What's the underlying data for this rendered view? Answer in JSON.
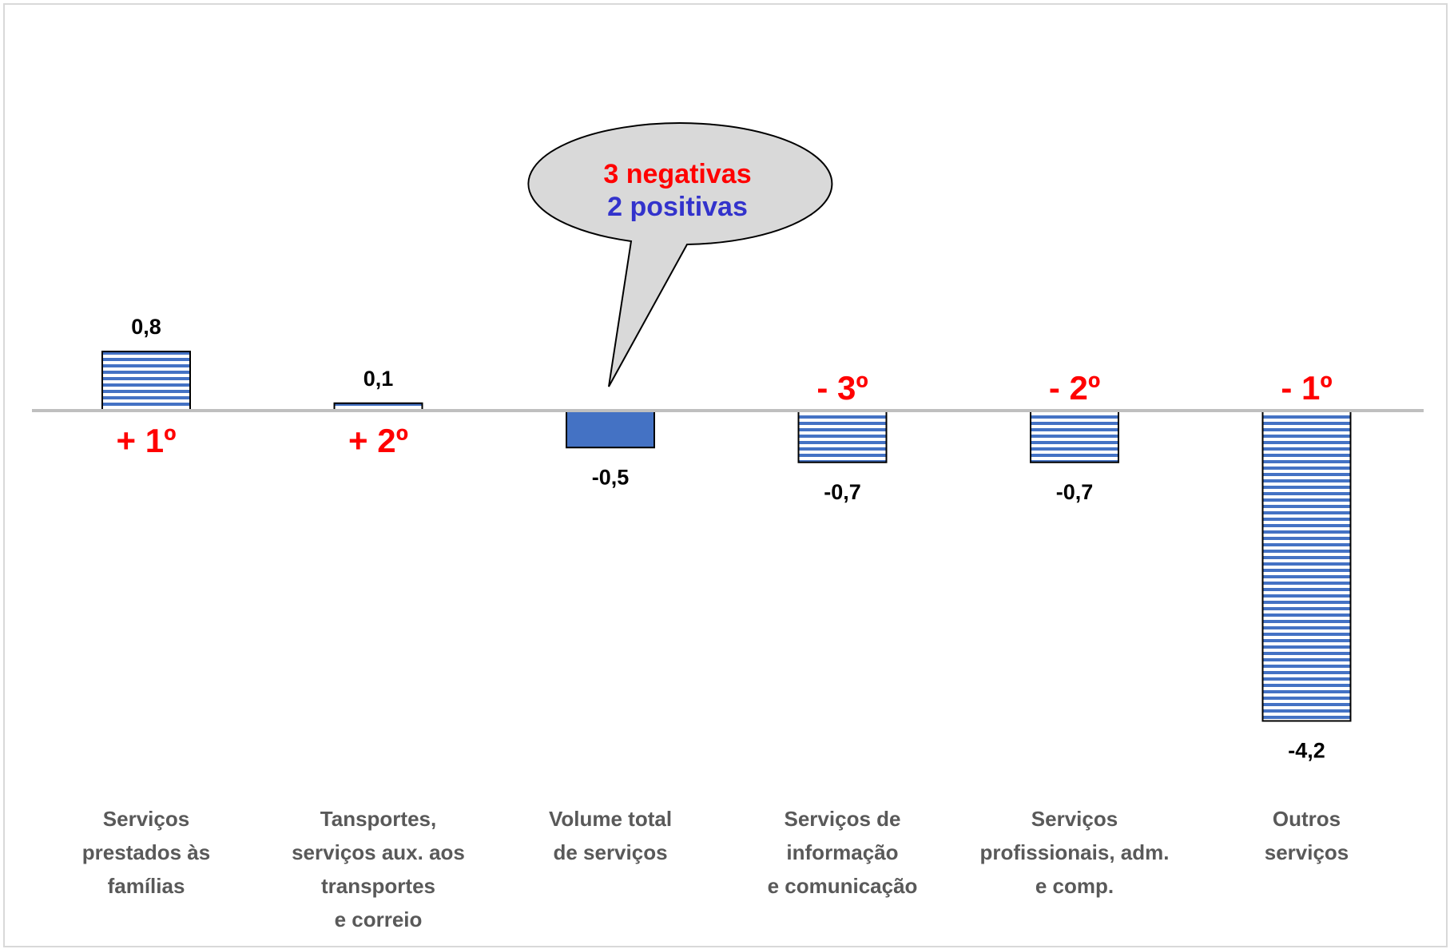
{
  "chart_data": {
    "type": "bar",
    "categories": [
      [
        "Serviços",
        "prestados às",
        "famílias"
      ],
      [
        "Tansportes,",
        "serviços aux. aos",
        "transportes",
        "e correio"
      ],
      [
        "Volume total",
        "de serviços"
      ],
      [
        "Serviços de",
        "informação",
        "e comunicação"
      ],
      [
        "Serviços",
        "profissionais, adm.",
        "e comp."
      ],
      [
        "Outros",
        "serviços"
      ]
    ],
    "values": [
      0.8,
      0.1,
      -0.5,
      -0.7,
      -0.7,
      -4.2
    ],
    "value_labels": [
      "0,8",
      "0,1",
      "-0,5",
      "-0,7",
      "-0,7",
      "-4,2"
    ],
    "rank_labels": [
      "+ 1º",
      "+ 2º",
      "",
      "- 3º",
      "- 2º",
      "- 1º"
    ],
    "highlight_index": 2,
    "ylim": [
      -4.2,
      0.8
    ],
    "grid": false,
    "legend": "none",
    "colors": {
      "pattern_bar_fill": "#ffffff",
      "pattern_stripe": "#4472c4",
      "highlight_bar": "#4472c4",
      "axis": "#bfbfbf",
      "rank_text": "#ff0000",
      "category_text": "#595959"
    },
    "callout": {
      "line1": "3 negativas",
      "line2": "2 positivas",
      "line1_color": "#ff0000",
      "line2_color": "#3333cc",
      "fill": "#d9d9d9"
    }
  }
}
